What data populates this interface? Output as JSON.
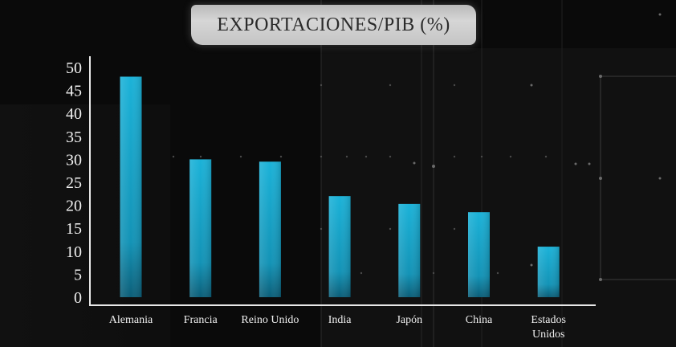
{
  "chart_data": {
    "type": "bar",
    "title": "EXPORTACIONES/PIB (%)",
    "xlabel": "",
    "ylabel": "",
    "categories": [
      "Alemania",
      "Francia",
      "Reino Unido",
      "India",
      "Japón",
      "China",
      "Estados Unidos"
    ],
    "values": [
      48,
      30,
      29.5,
      22,
      20.3,
      18.5,
      11
    ],
    "ylim": [
      0,
      50
    ],
    "yticks": [
      0,
      5,
      10,
      15,
      20,
      25,
      30,
      35,
      40,
      45,
      50
    ],
    "grid": false,
    "legend": "none",
    "bar_color": "#1aa7c9",
    "background_color": "#0a0a0a"
  }
}
